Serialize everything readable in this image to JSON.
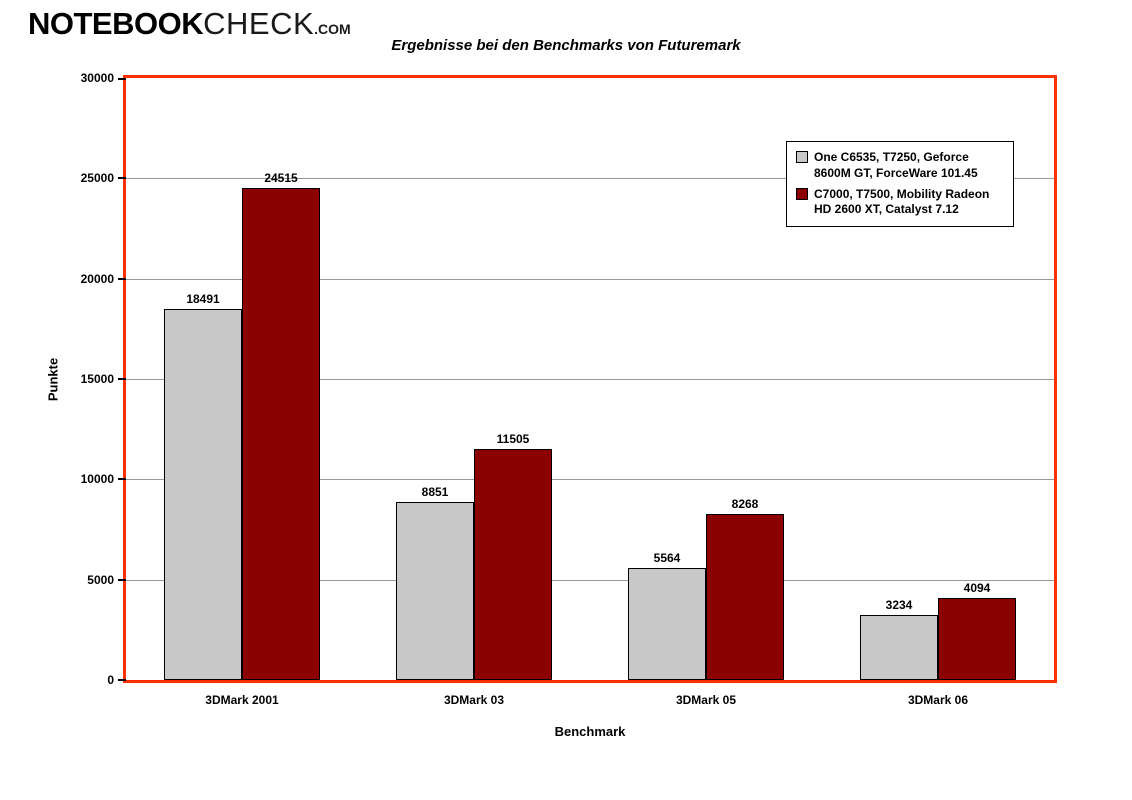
{
  "logo": {
    "part1": "NOTEBOOK",
    "part2": "CHECK",
    "suffix": ".com"
  },
  "title": "Ergebnisse bei den Benchmarks von Futuremark",
  "colors": {
    "plot_border": "#ff3000",
    "series_gray": "#c8c8c8",
    "series_darkred": "#8b0000",
    "gridline": "#999999"
  },
  "chart_data": {
    "type": "bar",
    "title": "Ergebnisse bei den Benchmarks von Futuremark",
    "categories": [
      "3DMark 2001",
      "3DMark 03",
      "3DMark 05",
      "3DMark 06"
    ],
    "series": [
      {
        "name": "One C6535, T7250, Geforce 8600M GT, ForceWare 101.45",
        "color": "#c8c8c8",
        "values": [
          18491,
          8851,
          5564,
          3234
        ]
      },
      {
        "name": "C7000, T7500, Mobility Radeon HD 2600 XT, Catalyst 7.12",
        "color": "#8b0000",
        "values": [
          24515,
          11505,
          8268,
          4094
        ]
      }
    ],
    "xlabel": "Benchmark",
    "ylabel": "Punkte",
    "ylim": [
      0,
      30000
    ],
    "ytick_step": 5000,
    "grid": true,
    "legend_position": "top-right"
  }
}
